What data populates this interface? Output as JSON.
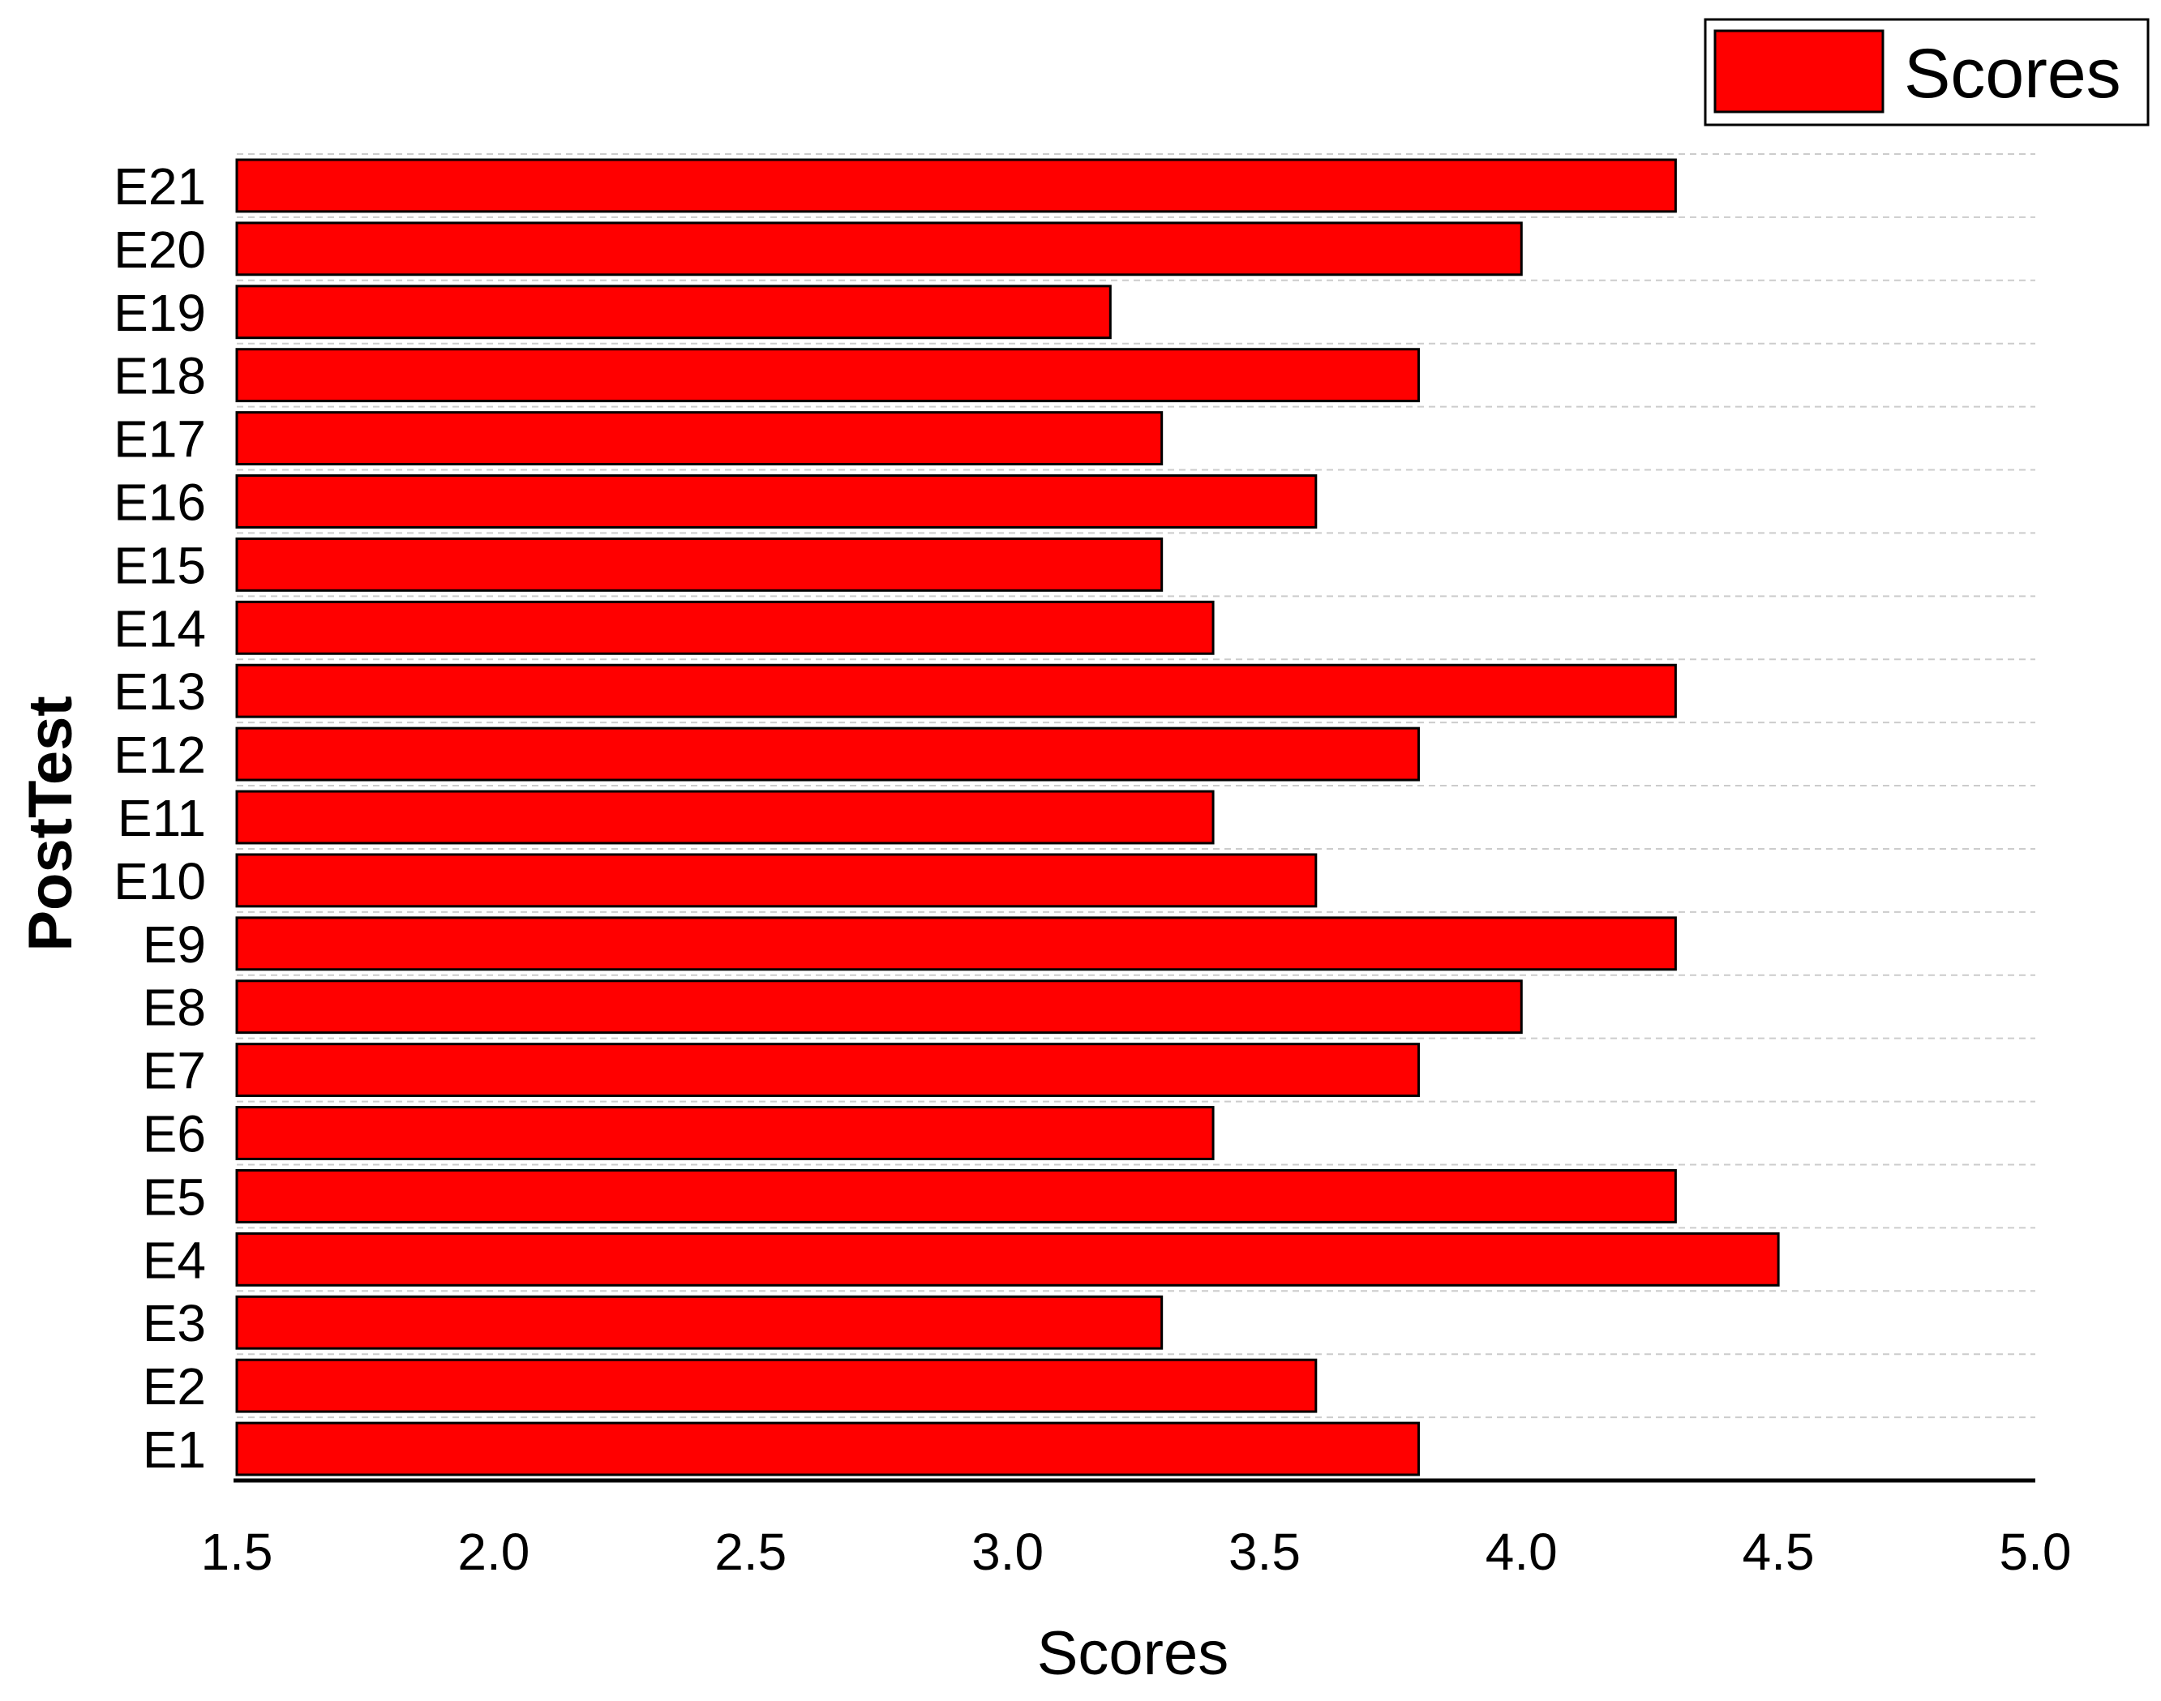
{
  "chart_data": {
    "type": "bar",
    "orientation": "horizontal",
    "categories": [
      "E1",
      "E2",
      "E3",
      "E4",
      "E5",
      "E6",
      "E7",
      "E8",
      "E9",
      "E10",
      "E11",
      "E12",
      "E13",
      "E14",
      "E15",
      "E16",
      "E17",
      "E18",
      "E19",
      "E20",
      "E21"
    ],
    "series": [
      {
        "name": "Scores",
        "color": "#ff0000",
        "values": [
          3.8,
          3.6,
          3.3,
          4.5,
          4.3,
          3.4,
          3.8,
          4.0,
          4.3,
          3.6,
          3.4,
          3.8,
          4.3,
          3.4,
          3.3,
          3.6,
          3.3,
          3.8,
          3.2,
          4.0,
          4.3
        ]
      }
    ],
    "xlabel": "Scores",
    "ylabel": "PostTest",
    "xlim": [
      1.5,
      5.0
    ],
    "xticks": [
      "1.5",
      "2.0",
      "2.5",
      "3.0",
      "3.5",
      "4.0",
      "4.5",
      "5.0"
    ],
    "grid": "horizontal-dashed",
    "legend": "top-right"
  }
}
